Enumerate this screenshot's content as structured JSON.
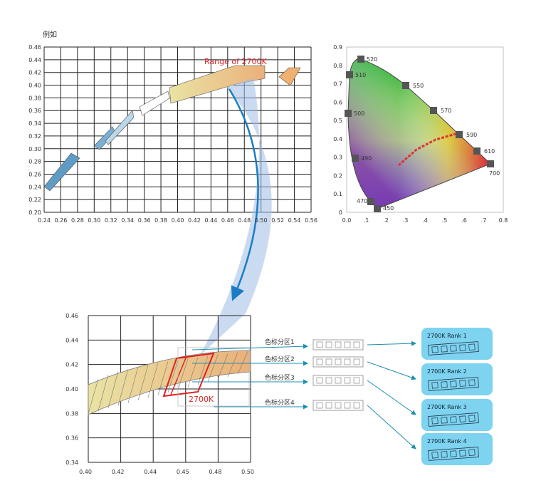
{
  "top_chart": {
    "label": "例如",
    "annotation": "Range of 2700K",
    "xticks": [
      "0.24",
      "0.26",
      "0.28",
      "0.30",
      "0.32",
      "0.34",
      "0.36",
      "0.38",
      "0.40",
      "0.42",
      "0.44",
      "0.46",
      "0.48",
      "0.50",
      "0.52",
      "0.54",
      "0.56"
    ],
    "yticks": [
      "0.46",
      "0.44",
      "0.42",
      "0.40",
      "0.38",
      "0.36",
      "0.34",
      "0.32",
      "0.30",
      "0.28",
      "0.26",
      "0.24",
      "0.22",
      "0.20"
    ]
  },
  "cie_chart": {
    "xticks": [
      "0.0",
      ".1",
      ".2",
      ".3",
      ".4",
      ".5",
      ".6",
      ".7",
      "0.8"
    ],
    "yticks": [
      "0.9",
      "0.8",
      "0.7",
      "0.6",
      "0.5",
      "0.4",
      "0.3",
      "0.2",
      "0.1",
      "0"
    ],
    "wavelengths": [
      "520",
      "510",
      "500",
      "490",
      "470",
      "450",
      "550",
      "570",
      "590",
      "610",
      "700"
    ]
  },
  "bottom_chart": {
    "annotation": "2700K",
    "xticks": [
      "0.40",
      "0.42",
      "0.44",
      "0.45",
      "0.48",
      "0.50"
    ],
    "yticks": [
      "0.46",
      "0.44",
      "0.42",
      "0.40",
      "0.38",
      "0.36",
      "0.34"
    ]
  },
  "bins": [
    "色标分区1",
    "色标分区2",
    "色标分区3",
    "色标分区4"
  ],
  "ranks": [
    "2700K Rank 1",
    "2700K Rank 2",
    "2700K Rank 3",
    "2700K Rank 4"
  ]
}
